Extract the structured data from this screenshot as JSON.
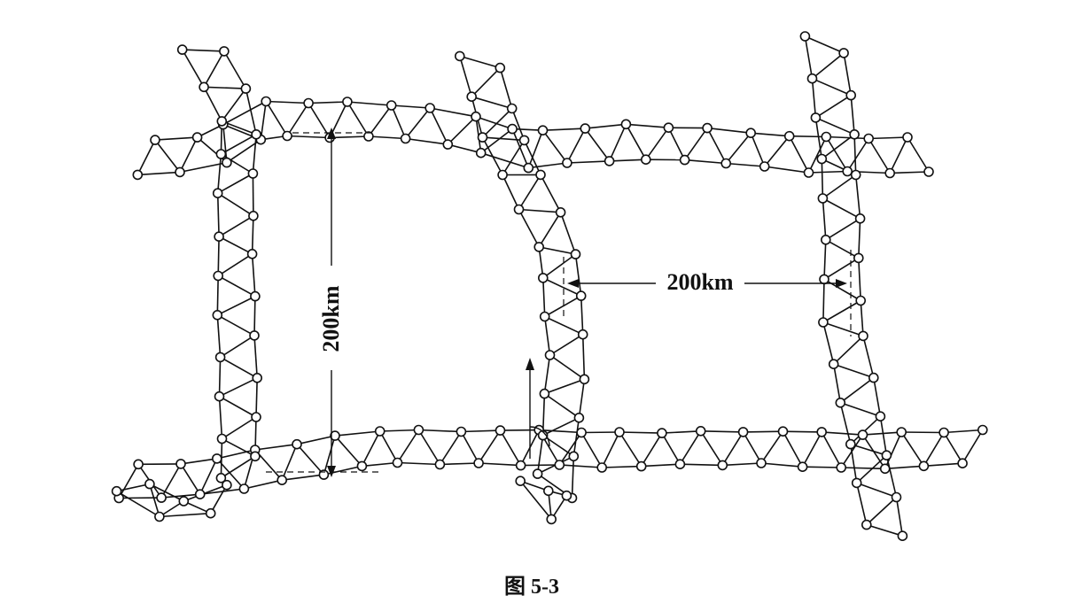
{
  "figure": {
    "caption": "图 5-3",
    "dimension_vertical": "200km",
    "dimension_horizontal": "200km",
    "line_color": "#111111",
    "background_color": "#ffffff"
  }
}
